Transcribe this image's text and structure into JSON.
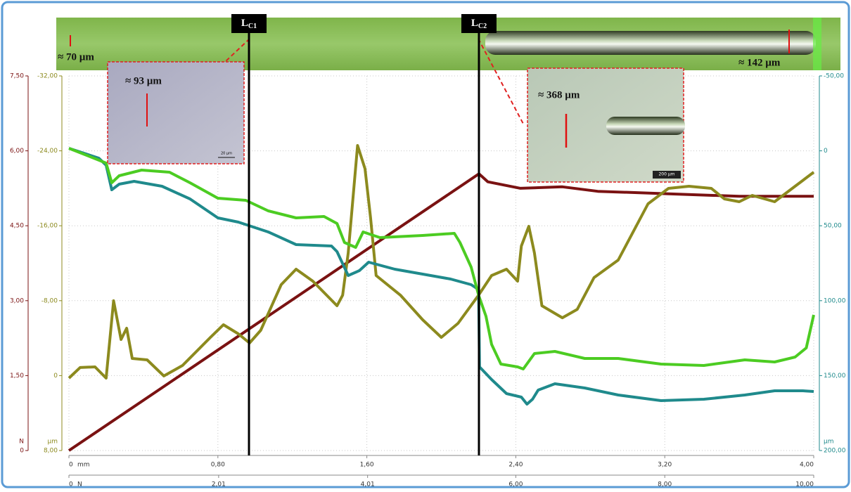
{
  "chart_data": {
    "type": "line",
    "xlim": [
      0,
      4
    ],
    "xticks": [
      0,
      {
        "value": 0.8,
        "label": "0,80"
      },
      {
        "value": 1.6,
        "label": "1,60"
      },
      {
        "value": 2.4,
        "label": "2,40"
      },
      {
        "value": 3.2,
        "label": "3,20"
      },
      {
        "value": 4,
        "label": "4,00"
      }
    ],
    "xlabel": "mm",
    "x2lim": [
      0,
      10
    ],
    "x2ticks": [
      0,
      {
        "value": 2.01,
        "label": "2,01"
      },
      {
        "value": 4.01,
        "label": "4,01"
      },
      {
        "value": 6,
        "label": "6,00"
      },
      {
        "value": 8,
        "label": "8,00"
      },
      {
        "value": 10,
        "label": "10,00"
      }
    ],
    "x2label": "N",
    "ylim": [
      0,
      7.5
    ],
    "yticks": [
      0,
      {
        "value": 1.5,
        "label": "1,50"
      },
      {
        "value": 3,
        "label": "3,00"
      },
      {
        "value": 4.5,
        "label": "4,50"
      },
      {
        "value": 6,
        "label": "6,00"
      },
      {
        "value": 7.5,
        "label": "7,50"
      }
    ],
    "ylabel": "N",
    "y3lim": [
      8,
      -32
    ],
    "y3ticks": [
      {
        "value": 8,
        "label": "8,00"
      },
      0,
      {
        "value": -8,
        "label": "-8,00"
      },
      {
        "value": -16,
        "label": "-16,00"
      },
      {
        "value": -24,
        "label": "-24,00"
      },
      {
        "value": -32,
        "label": "-32,00"
      }
    ],
    "y3label": "µm",
    "y2lim": [
      200,
      -50
    ],
    "y2ticks": [
      {
        "value": 200,
        "label": "200,00"
      },
      {
        "value": 150,
        "label": "150,00"
      },
      {
        "value": 100,
        "label": "100,00"
      },
      {
        "value": 50,
        "label": "50,00"
      },
      0,
      {
        "value": -50,
        "label": "-50,00"
      }
    ],
    "y2label": "µm",
    "grid": true,
    "series": [
      {
        "color": "#7a1212",
        "axis": "y",
        "x": [
          0,
          2.202,
          2.25,
          2.425,
          2.65,
          2.84,
          3.22,
          3.6,
          4.0
        ],
        "values": [
          0,
          5.54,
          5.38,
          5.25,
          5.28,
          5.19,
          5.14,
          5.09,
          5.09
        ]
      },
      {
        "color": "#8c8a1e",
        "axis": "y3",
        "x": [
          0,
          0.06,
          0.14,
          0.2,
          0.24,
          0.28,
          0.31,
          0.34,
          0.42,
          0.51,
          0.61,
          0.76,
          0.83,
          0.91,
          0.97,
          1.03,
          1.14,
          1.22,
          1.31,
          1.44,
          1.47,
          1.5,
          1.55,
          1.59,
          1.62,
          1.65,
          1.78,
          1.9,
          2.0,
          2.09,
          2.2,
          2.27,
          2.35,
          2.41,
          2.43,
          2.47,
          2.5,
          2.54,
          2.65,
          2.73,
          2.82,
          2.95,
          3.11,
          3.22,
          3.33,
          3.45,
          3.52,
          3.6,
          3.67,
          3.79,
          3.9,
          4.0
        ],
        "values": [
          0.27,
          -0.86,
          -0.93,
          0.27,
          -7.99,
          -3.86,
          -5.06,
          -1.83,
          -1.68,
          0.04,
          -1.08,
          -4.08,
          -5.43,
          -4.46,
          -3.48,
          -4.83,
          -9.71,
          -11.36,
          -10.09,
          -7.46,
          -8.59,
          -13.09,
          -24.57,
          -22.09,
          -16.84,
          -10.69,
          -8.59,
          -5.96,
          -4.08,
          -5.58,
          -8.59,
          -10.69,
          -11.36,
          -10.09,
          -13.84,
          -15.94,
          -13.09,
          -7.46,
          -6.18,
          -7.08,
          -10.46,
          -12.34,
          -18.34,
          -19.99,
          -20.22,
          -19.99,
          -18.87,
          -18.57,
          -19.24,
          -18.57,
          -20.22,
          -21.72
        ]
      },
      {
        "color": "#1f8a8c",
        "axis": "y2",
        "x": [
          0,
          0.16,
          0.2,
          0.23,
          0.27,
          0.35,
          0.5,
          0.65,
          0.8,
          0.91,
          1.07,
          1.22,
          1.41,
          1.44,
          1.5,
          1.56,
          1.61,
          1.75,
          1.9,
          2.05,
          2.16,
          2.2,
          2.205,
          2.27,
          2.35,
          2.43,
          2.46,
          2.49,
          2.52,
          2.61,
          2.77,
          2.95,
          3.18,
          3.41,
          3.63,
          3.79,
          3.94,
          4.0
        ],
        "values": [
          -1.69,
          4.88,
          9.57,
          25.98,
          22.23,
          20.36,
          23.64,
          32.08,
          44.75,
          47.56,
          54.13,
          62.57,
          63.51,
          67.26,
          83.21,
          79.92,
          74.3,
          78.99,
          82.27,
          85.55,
          89.31,
          92.59,
          144.18,
          152.63,
          162.01,
          164.35,
          169.04,
          165.76,
          159.66,
          155.44,
          158.26,
          162.95,
          166.7,
          165.76,
          162.95,
          160.13,
          160.13,
          160.6
        ]
      },
      {
        "color": "#4ccc22",
        "axis": "y2",
        "x": [
          0,
          0.2,
          0.23,
          0.27,
          0.39,
          0.54,
          0.65,
          0.8,
          0.95,
          1.07,
          1.22,
          1.37,
          1.44,
          1.48,
          1.54,
          1.58,
          1.67,
          1.9,
          2.07,
          2.1,
          2.16,
          2.2,
          2.24,
          2.27,
          2.32,
          2.41,
          2.44,
          2.5,
          2.61,
          2.77,
          2.95,
          3.18,
          3.41,
          3.63,
          3.79,
          3.9,
          3.96,
          4.0
        ],
        "values": [
          -1.69,
          8.16,
          21.29,
          16.6,
          12.85,
          14.26,
          21.29,
          31.61,
          33.02,
          40.06,
          44.75,
          43.81,
          48.5,
          61.16,
          64.45,
          54.13,
          57.88,
          56.47,
          55.07,
          61.16,
          77.58,
          96.34,
          110.41,
          129.17,
          142.31,
          144.18,
          145.59,
          135.27,
          133.86,
          138.56,
          138.56,
          142.31,
          143.25,
          139.49,
          140.9,
          137.62,
          131.52,
          109.47
        ]
      }
    ],
    "markers": [
      {
        "x": 0.967,
        "label": "L",
        "sub": "C1"
      },
      {
        "x": 2.202,
        "label": "L",
        "sub": "C2"
      }
    ]
  },
  "annotations": [
    "≈ 70 µm",
    "≈ 142 µm",
    "≈ 93 µm",
    "≈ 368 µm",
    "20 µm",
    "200 µm"
  ]
}
